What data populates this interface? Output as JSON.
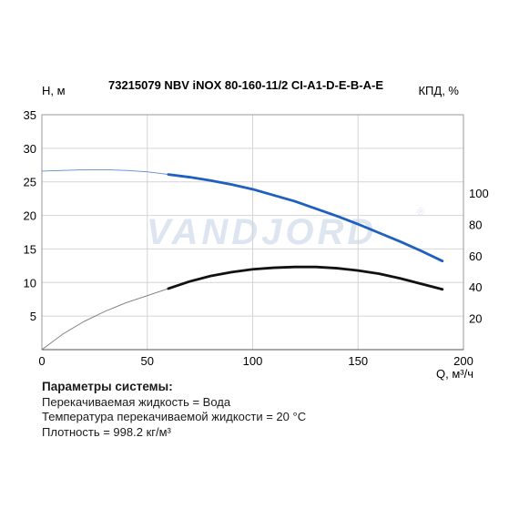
{
  "chart_data": {
    "type": "line",
    "title": "73215079 NBV iNOX 80-160-11/2 CI-A1-D-E-B-A-E",
    "ylabel": "H, м",
    "ylabel_right": "КПД, %",
    "xlabel": "Q, м³/ч",
    "xlim": [
      0,
      200
    ],
    "ylim": [
      0,
      35
    ],
    "y2lim": [
      0,
      150
    ],
    "x_ticks": [
      0,
      50,
      100,
      150,
      200
    ],
    "y_ticks": [
      5,
      10,
      15,
      20,
      25,
      30,
      35
    ],
    "y2_ticks": [
      20,
      40,
      60,
      80,
      100
    ],
    "grid": true,
    "watermark": "VANDJORD",
    "series": [
      {
        "axis": "left",
        "color": "#1f5fbf",
        "x": [
          0,
          10,
          20,
          30,
          40,
          50,
          60,
          70,
          80,
          90,
          100,
          110,
          120,
          130,
          140,
          150,
          160,
          170,
          180,
          190
        ],
        "values": [
          26.6,
          26.7,
          26.8,
          26.8,
          26.7,
          26.5,
          26.1,
          25.7,
          25.2,
          24.6,
          23.9,
          23.0,
          22.1,
          21.0,
          19.9,
          18.7,
          17.4,
          16.1,
          14.7,
          13.2
        ],
        "dashed_until": 60
      },
      {
        "axis": "right",
        "color": "#111111",
        "x": [
          0,
          10,
          20,
          30,
          40,
          50,
          60,
          70,
          80,
          90,
          100,
          110,
          120,
          130,
          140,
          150,
          160,
          170,
          180,
          190
        ],
        "values": [
          0,
          10,
          18,
          24.5,
          30,
          34.5,
          39,
          43.5,
          47,
          49.5,
          51.3,
          52.3,
          52.8,
          52.8,
          52,
          50.5,
          48.5,
          45.5,
          42,
          38.5
        ],
        "dashed_until": 60
      }
    ]
  },
  "params": {
    "title": "Параметры системы:",
    "lines": [
      "Перекачиваемая жидкость = Вода",
      "Температура перекачиваемой жидкости = 20 °C",
      "Плотность = 998.2 кг/м³"
    ]
  }
}
